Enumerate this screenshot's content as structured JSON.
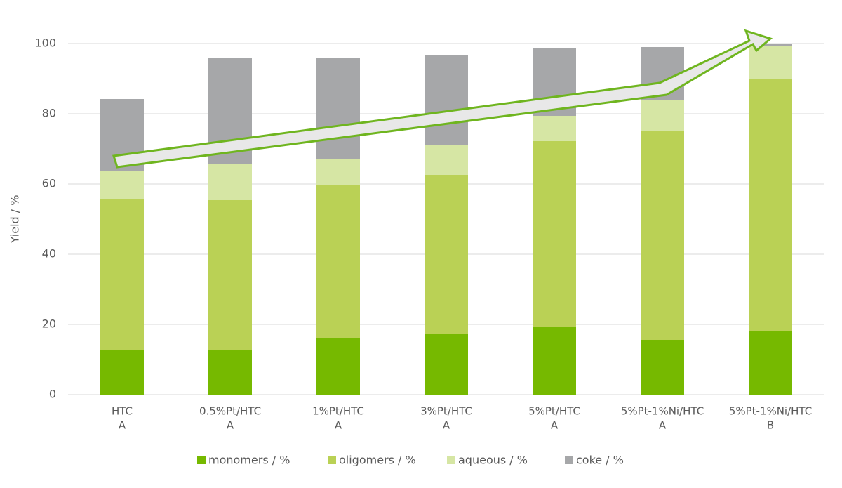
{
  "chart_data": {
    "type": "stacked_bar",
    "y_label": "Yield / %",
    "categories": [
      [
        "HTC",
        "A"
      ],
      [
        "0.5%Pt/HTC",
        "A"
      ],
      [
        "1%Pt/HTC",
        "A"
      ],
      [
        "3%Pt/HTC",
        "A"
      ],
      [
        "5%Pt/HTC",
        "A"
      ],
      [
        "5%Pt-1%Ni/HTC",
        "A"
      ],
      [
        "5%Pt-1%Ni/HTC",
        "B"
      ]
    ],
    "series": [
      {
        "name": "monomers / %",
        "color": "#76b900",
        "values": [
          12.6,
          12.8,
          16.0,
          17.2,
          19.4,
          15.6,
          18.0
        ]
      },
      {
        "name": "oligomers / %",
        "color": "#bad155",
        "values": [
          43.2,
          42.6,
          43.6,
          45.4,
          52.8,
          59.4,
          72.0
        ]
      },
      {
        "name": "aqueous / %",
        "color": "#d6e6a4",
        "values": [
          8.0,
          10.4,
          7.6,
          8.6,
          7.2,
          8.8,
          9.4
        ]
      },
      {
        "name": "coke / %",
        "color": "#a6a7a9",
        "values": [
          20.4,
          30.0,
          28.6,
          25.6,
          19.2,
          15.2,
          0.6
        ]
      }
    ],
    "ylim": [
      0,
      100
    ],
    "yticks": [
      0,
      20,
      40,
      60,
      80,
      100
    ],
    "grid": true,
    "legend": "bottom"
  }
}
